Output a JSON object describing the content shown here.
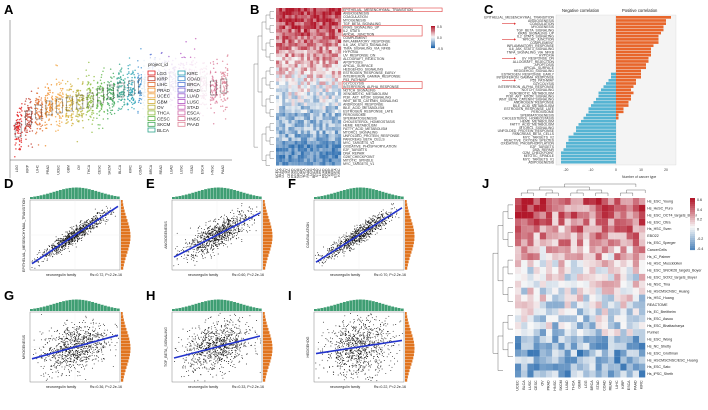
{
  "panel_labels": [
    "A",
    "B",
    "C",
    "D",
    "E",
    "F",
    "G",
    "H",
    "I",
    "J"
  ],
  "panel_a": {
    "legend_title": "project_id",
    "legend_col1": [
      "LGG",
      "KIRP",
      "LIHC",
      "PRAD",
      "UCEC",
      "GBM",
      "OV",
      "THCA",
      "CESC",
      "SKCM",
      "BLCA"
    ],
    "legend_col2": [
      "KIRC",
      "COAD",
      "BRCA",
      "READ",
      "LUAD",
      "LUSC",
      "STAD",
      "ESCA",
      "HNSC",
      "PAAD"
    ],
    "x_labels": [
      "LGG",
      "KIRP",
      "LIHC",
      "PRAD",
      "UCEC",
      "GBM",
      "OV",
      "THCA",
      "CESC",
      "SKCM",
      "BLCA",
      "KIRC",
      "COAD",
      "BRCA",
      "READ",
      "LUAD",
      "LUSC",
      "STAD",
      "ESCA",
      "HNSC",
      "PAAD"
    ],
    "colors": [
      "#e41a1c",
      "#c0392b",
      "#e06d2f",
      "#f08a24",
      "#f2a541",
      "#d4b03a",
      "#b8b23a",
      "#8dbb3c",
      "#5fb547",
      "#3aa655",
      "#2fa58c",
      "#2aa3b5",
      "#3f8fd0",
      "#5b79d6",
      "#7a68d4",
      "#9a5bcc",
      "#b253c4",
      "#c55fb7",
      "#d06aa8",
      "#d97898",
      "#e0879a"
    ]
  },
  "panel_b": {
    "colorbar_ticks": [
      "0.5",
      "0.0",
      "-0.5"
    ],
    "pathways": [
      "EPITHELIAL_MESENCHYMAL_TRANSITION",
      "ANGIOGENESIS",
      "COAGULATION",
      "MYOGENESIS",
      "TGF_BETA_SIGNALING",
      "KRAS_SIGNALING_UP",
      "IL2_STAT5",
      "APICAL_JUNCTION",
      "COMPLEMENT",
      "INFLAMMATORY_RESPONSE",
      "IL6_JAK_STAT3_SIGNALING",
      "TNFA_SIGNALING_VIA_NFKB",
      "HYPOXIA",
      "UV_RESPONSE_DN",
      "ALLOGRAFT_REJECTION",
      "APOPTOSIS",
      "APICAL_SURFACE",
      "HEDGEHOG_SIGNALING",
      "ESTROGEN_RESPONSE_EARLY",
      "INTERFERON_GAMMA_RESPONSE",
      "P53_PATHWAY",
      "GLYCOLYSIS",
      "INTERFERON_ALPHA_RESPONSE",
      "NOTCH_SIGNALING",
      "XENOBIOTIC_METABOLISM",
      "PI3K_AKT_MTOR_SIGNALING",
      "WNT_BETA_CATENIN_SIGNALING",
      "ANDROGEN_RESPONSE",
      "BILE_ACID_METABOLISM",
      "ESTROGEN_RESPONSE_LATE",
      "PEROXISOME",
      "SPERMATOGENESIS",
      "CHOLESTEROL_HOMEOSTASIS",
      "HEME_METABOLISM",
      "FATTY_ACID_METABOLISM",
      "MTORC1_SIGNALING",
      "UNFOLDED_PROTEIN_RESPONSE",
      "PANCREAS_BETA_CELLS",
      "MYC_TARGETS_V2",
      "OXIDATIVE_PHOSPHORYLATION",
      "E2F_TARGETS",
      "DNA_REPAIR",
      "G2M_CHECKPOINT",
      "MITOTIC_SPINDLE",
      "MYC_TARGETS_V1"
    ],
    "cancers": [
      "UCEC",
      "BLCA",
      "LUSC",
      "OV",
      "CESC",
      "PRAD",
      "HNSC",
      "SKCM",
      "LUAD",
      "THCA",
      "PAAD",
      "LGG",
      "BRCA",
      "STAD",
      "LIHC",
      "READ",
      "COAD",
      "KIRP",
      "GBM",
      "ESCA",
      "KIRC"
    ]
  },
  "panel_c": {
    "negative_title": "Negative correlation",
    "positive_title": "Positive correlation",
    "x_ticks": [
      "-20",
      "-10",
      "0",
      "10",
      "20"
    ],
    "x_label": "Number of cancer type",
    "neg_color": "#56b4d3",
    "pos_color": "#e8662b",
    "labels": [
      "EPITHELIAL_MESENCHYMAL_TRANSITION",
      "ANGIOGENESIS",
      "COAGULATION",
      "MYOGENESIS",
      "TGF_BETA_SIGNALING",
      "KRAS_SIGNALING_UP",
      "IL2_STAT5_SIGNALING",
      "APICAL_JUNCTION",
      "COMPLEMENT",
      "INFLAMMATORY_RESPONSE",
      "IL6_JAK_STAT3_SIGNALING",
      "TNFA_SIGNALING_VIA_NFKB",
      "HYPOXIA",
      "UV_RESPONSE_DN",
      "ALLOGRAFT_REJECTION",
      "APOPTOSIS",
      "APICAL_SURFACE",
      "HEDGEHOG_SIGNALING",
      "ESTROGEN_RESPONSE_EARLY",
      "INTERFERON_GAMMA_RESPONSE",
      "P53_PATHWAY",
      "GLYCOLYSIS",
      "INTERFERON_ALPHA_RESPONSE",
      "NOTCH_SIGNALING",
      "XENOBIOTIC_METABOLISM",
      "PI3K_AKT_MTOR_SIGNALING",
      "WNT_BETA_CATENIN_SIGNALING",
      "ANDROGEN_RESPONSE",
      "BILE_ACID_METABOLISM",
      "ESTROGEN_RESPONSE_LATE",
      "PEROXISOME",
      "SPERMATOGENESIS",
      "CHOLESTEROL_HOMEOSTASIS",
      "HEME_METABOLISM",
      "FATTY_ACID_METABOLISM",
      "MTORC1_SIGNALING",
      "UNFOLDED_PROTEIN_RESPONSE",
      "PANCREAS_BETA_CELLS",
      "MYC_TARGETS_V2",
      "REACTIVE_OXYGEN_SPECIES",
      "OXIDATIVE_PHOSPHORYLATION",
      "E2F_TARGETS",
      "DNA_REPAIR",
      "G2M_CHECKPOINT",
      "MITOTIC_SPINDLE",
      "MYC_TARGETS_V1",
      "ADIPOGENESIS"
    ]
  },
  "scatter_panels": [
    {
      "label": "D",
      "ylabel": "EPITHELIAL_MESENCHYMAL_TRANSITION",
      "xlabel": "neuroregulin family",
      "stat": "Rs=0.72, P<2.2e-16",
      "slope": 0.78
    },
    {
      "label": "E",
      "ylabel": "ANGIOGENESIS",
      "xlabel": "neuroregulin family",
      "stat": "Rs=0.60, P<2.2e-16",
      "slope": 0.6
    },
    {
      "label": "F",
      "ylabel": "COAGULATION",
      "xlabel": "neuroregulin family",
      "stat": "Rs=0.70, P<2.2e-16",
      "slope": 0.74
    },
    {
      "label": "G",
      "ylabel": "MYOGENESIS",
      "xlabel": "neuroregulin family",
      "stat": "Rs=0.36, P<2.2e-16",
      "slope": 0.32
    },
    {
      "label": "H",
      "ylabel": "TGF_BETA_SIGNALING",
      "xlabel": "neuroregulin family",
      "stat": "Rs=0.33, P<2.2e-16",
      "slope": 0.3
    },
    {
      "label": "I",
      "ylabel": "HEDGEHOG",
      "xlabel": "neuroregulin family",
      "stat": "Rs=0.22, P<2.2e-16",
      "slope": 0.18
    }
  ],
  "panel_j": {
    "colorbar_ticks": [
      "0.6",
      "0.4",
      "0.2",
      "0",
      "-0.2",
      "-0.4"
    ],
    "rows": [
      "Hs_ESC_Young",
      "Hs_HeSC_Puro",
      "Hs_ESC_OCT4_targets_Boyer",
      "Hs_ESC_Cltra",
      "Hs_HSC_Sven",
      "EBO22",
      "Hs_ESC_Sperger",
      "CancerCells",
      "Hs_iC_Palmer",
      "Hs_HSC_Muscidollen",
      "Hs_ESC_SNOK26_targets_Boyer",
      "Hs_ESC_SOX2_targets_Boyer",
      "Hs_NSC_Tina",
      "Hs_HSCMSCNSC_Huang",
      "Hs_HSC_Huang",
      "REACTOME",
      "Hs_EC_Breitheim",
      "Hs_ESC_Assou",
      "Hs_ESC_Bhattacharya",
      "Purinet",
      "Hs_ESC_Wong",
      "Hs_NC_Shetty",
      "Hs_ESC_Grottman",
      "Hs_HSCMSCNSC/ESC_Huang",
      "Hs_ESC_Sato",
      "Hs_iPSC_Sheth"
    ],
    "cols": [
      "UCEC",
      "BLCA",
      "LUSC",
      "CESC",
      "OV",
      "PRAD",
      "HNSC",
      "SKCM",
      "LUAD",
      "THCA",
      "GBM",
      "LGG",
      "BRCA",
      "STAD",
      "COAD",
      "READ",
      "LIHC",
      "KIRP",
      "ESCA",
      "PAAD",
      "KIRC"
    ]
  }
}
